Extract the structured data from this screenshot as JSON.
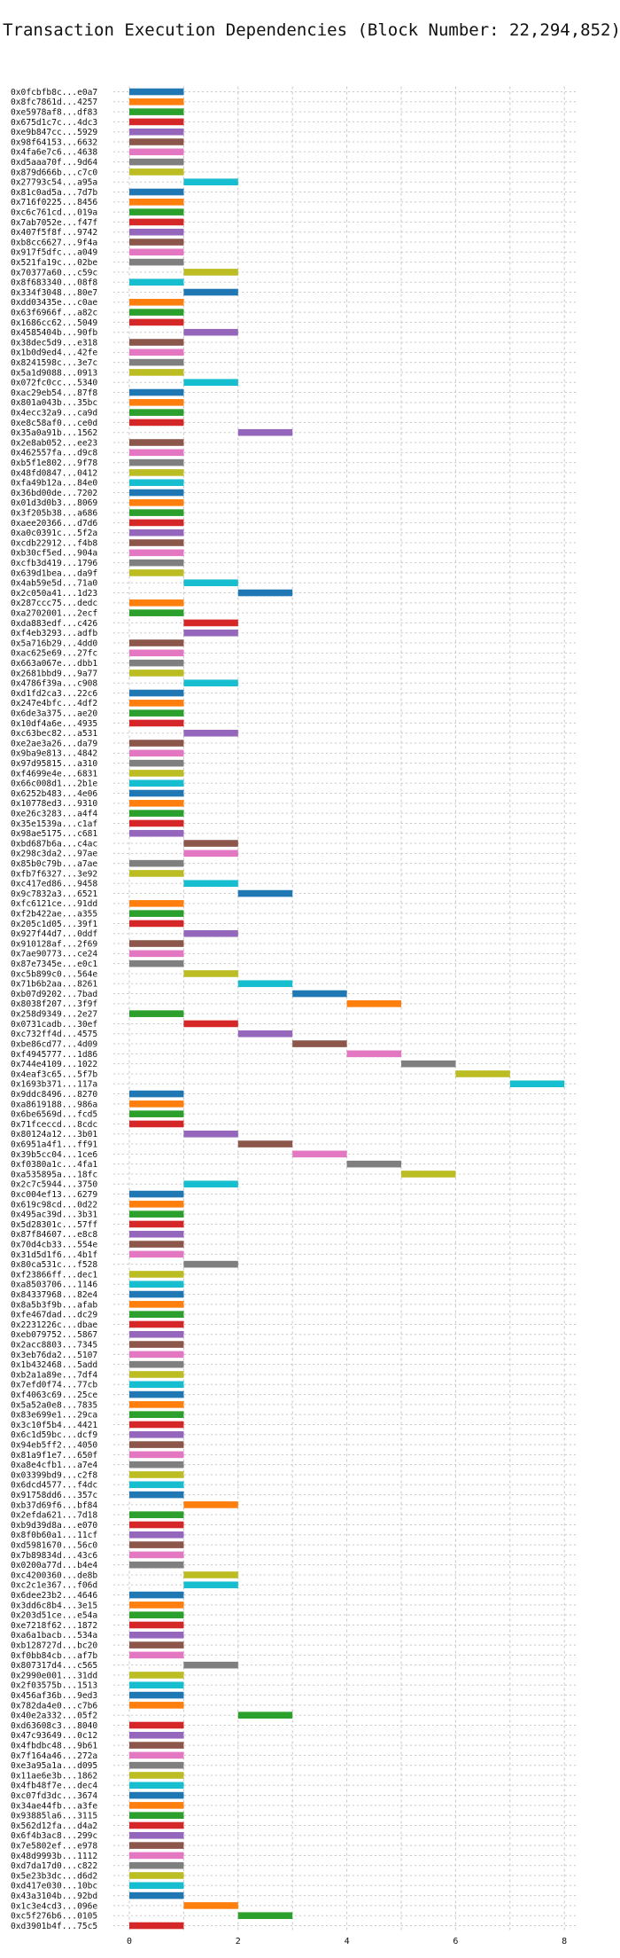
{
  "chart_data": {
    "type": "bar",
    "orientation": "horizontal-gantt",
    "title": "Transaction Execution Dependencies (Block Number: 22,294,852)",
    "xlabel": "",
    "ylabel": "",
    "xlim": [
      0,
      8.5
    ],
    "xticks": [
      0,
      2,
      4,
      6,
      8
    ],
    "grid": true,
    "legend": "none",
    "colors": [
      "#1f77b4",
      "#ff7f0e",
      "#2ca02c",
      "#d62728",
      "#9467bd",
      "#8c564b",
      "#e377c2",
      "#7f7f7f",
      "#bcbd22",
      "#17becf"
    ],
    "transactions": [
      {
        "label": "0x0fcbfb8c...e0a7",
        "start": 0
      },
      {
        "label": "0x8fc7861d...4257",
        "start": 0
      },
      {
        "label": "0xe5978af8...df83",
        "start": 0
      },
      {
        "label": "0x675d1c7c...4dc3",
        "start": 0
      },
      {
        "label": "0xe9b847cc...5929",
        "start": 0
      },
      {
        "label": "0x98f64153...6632",
        "start": 0
      },
      {
        "label": "0x4fa6e7c6...4638",
        "start": 0
      },
      {
        "label": "0xd5aaa70f...9d64",
        "start": 0
      },
      {
        "label": "0x879d666b...c7c0",
        "start": 0
      },
      {
        "label": "0x27793c54...a95a",
        "start": 1
      },
      {
        "label": "0x81c0ad5a...7d7b",
        "start": 0
      },
      {
        "label": "0x716f0225...8456",
        "start": 0
      },
      {
        "label": "0xc6c761cd...019a",
        "start": 0
      },
      {
        "label": "0x7ab7052e...f47f",
        "start": 0
      },
      {
        "label": "0x407f5f8f...9742",
        "start": 0
      },
      {
        "label": "0xb8cc6627...9f4a",
        "start": 0
      },
      {
        "label": "0x917f5dfc...a049",
        "start": 0
      },
      {
        "label": "0x521fa19c...02be",
        "start": 0
      },
      {
        "label": "0x70377a60...c59c",
        "start": 1
      },
      {
        "label": "0x8f683340...08f8",
        "start": 0
      },
      {
        "label": "0x334f3048...80e7",
        "start": 1
      },
      {
        "label": "0xdd03435e...c0ae",
        "start": 0
      },
      {
        "label": "0x63f6966f...a82c",
        "start": 0
      },
      {
        "label": "0x1686cc62...5049",
        "start": 0
      },
      {
        "label": "0x4585404b...90fb",
        "start": 1
      },
      {
        "label": "0x38dec5d9...e318",
        "start": 0
      },
      {
        "label": "0x1b0d9ed4...42fe",
        "start": 0
      },
      {
        "label": "0x8241598c...3e7c",
        "start": 0
      },
      {
        "label": "0x5a1d9088...0913",
        "start": 0
      },
      {
        "label": "0x072fc0cc...5340",
        "start": 1
      },
      {
        "label": "0xac29eb54...87f8",
        "start": 0
      },
      {
        "label": "0x801a043b...35bc",
        "start": 0
      },
      {
        "label": "0x4ecc32a9...ca9d",
        "start": 0
      },
      {
        "label": "0xe8c58af0...ce0d",
        "start": 0
      },
      {
        "label": "0x35a0a91b...1562",
        "start": 2
      },
      {
        "label": "0x2e8ab052...ee23",
        "start": 0
      },
      {
        "label": "0x462557fa...d9c8",
        "start": 0
      },
      {
        "label": "0xb5f1e802...9f78",
        "start": 0
      },
      {
        "label": "0x48fd0847...0412",
        "start": 0
      },
      {
        "label": "0xfa49b12a...84e0",
        "start": 0
      },
      {
        "label": "0x36bd00de...7202",
        "start": 0
      },
      {
        "label": "0x01d3d0b3...8069",
        "start": 0
      },
      {
        "label": "0x3f205b38...a686",
        "start": 0
      },
      {
        "label": "0xaee20366...d7d6",
        "start": 0
      },
      {
        "label": "0xa0c0391c...5f2a",
        "start": 0
      },
      {
        "label": "0xcdb22912...f4b8",
        "start": 0
      },
      {
        "label": "0xb30cf5ed...904a",
        "start": 0
      },
      {
        "label": "0xcfb3d419...1796",
        "start": 0
      },
      {
        "label": "0x639d1bea...da9f",
        "start": 0
      },
      {
        "label": "0x4ab59e5d...71a0",
        "start": 1
      },
      {
        "label": "0x2c050a41...1d23",
        "start": 2
      },
      {
        "label": "0x287ccc75...dedc",
        "start": 0
      },
      {
        "label": "0xa2702001...2ecf",
        "start": 0
      },
      {
        "label": "0xda883edf...c426",
        "start": 1
      },
      {
        "label": "0xf4eb3293...adfb",
        "start": 1
      },
      {
        "label": "0x5a716b29...4dd0",
        "start": 0
      },
      {
        "label": "0xac625e69...27fc",
        "start": 0
      },
      {
        "label": "0x663a067e...dbb1",
        "start": 0
      },
      {
        "label": "0x2681bbd9...9a77",
        "start": 0
      },
      {
        "label": "0x4786f39a...c908",
        "start": 1
      },
      {
        "label": "0xd1fd2ca3...22c6",
        "start": 0
      },
      {
        "label": "0x247e4bfc...4df2",
        "start": 0
      },
      {
        "label": "0x6de3a375...ae20",
        "start": 0
      },
      {
        "label": "0x10df4a6e...4935",
        "start": 0
      },
      {
        "label": "0xc63bec82...a531",
        "start": 1
      },
      {
        "label": "0xe2ae3a26...da79",
        "start": 0
      },
      {
        "label": "0x9ba9e813...4842",
        "start": 0
      },
      {
        "label": "0x97d95815...a310",
        "start": 0
      },
      {
        "label": "0xf4699e4e...6831",
        "start": 0
      },
      {
        "label": "0x66c008d1...2b1e",
        "start": 0
      },
      {
        "label": "0x6252b483...4e06",
        "start": 0
      },
      {
        "label": "0x10778ed3...9310",
        "start": 0
      },
      {
        "label": "0xe26c3283...a4f4",
        "start": 0
      },
      {
        "label": "0x35e1539a...c1af",
        "start": 0
      },
      {
        "label": "0x98ae5175...c681",
        "start": 0
      },
      {
        "label": "0xbd687b6a...c4ac",
        "start": 1
      },
      {
        "label": "0x298c3da2...97ae",
        "start": 1
      },
      {
        "label": "0x85b0c79b...a7ae",
        "start": 0
      },
      {
        "label": "0xfb7f6327...3e92",
        "start": 0
      },
      {
        "label": "0xc417ed86...9458",
        "start": 1
      },
      {
        "label": "0x9c7832a3...6521",
        "start": 2
      },
      {
        "label": "0xfc6121ce...91dd",
        "start": 0
      },
      {
        "label": "0xf2b422ae...a355",
        "start": 0
      },
      {
        "label": "0x205c1d05...39f1",
        "start": 0
      },
      {
        "label": "0x927f44d7...0ddf",
        "start": 1
      },
      {
        "label": "0x910128af...2f69",
        "start": 0
      },
      {
        "label": "0x7ae90773...ce24",
        "start": 0
      },
      {
        "label": "0x87e7345e...e0c1",
        "start": 0
      },
      {
        "label": "0xc5b899c0...564e",
        "start": 1
      },
      {
        "label": "0x71b6b2aa...8261",
        "start": 2
      },
      {
        "label": "0xb07d9202...7bad",
        "start": 3
      },
      {
        "label": "0x8038f207...3f9f",
        "start": 4
      },
      {
        "label": "0x258d9349...2e27",
        "start": 0
      },
      {
        "label": "0x0731cadb...30ef",
        "start": 1
      },
      {
        "label": "0xc732ff4d...4575",
        "start": 2
      },
      {
        "label": "0xbe86cd77...4d09",
        "start": 3
      },
      {
        "label": "0xf4945777...1d86",
        "start": 4
      },
      {
        "label": "0x744e4109...1022",
        "start": 5
      },
      {
        "label": "0x4eaf3c65...5f7b",
        "start": 6
      },
      {
        "label": "0x1693b371...117a",
        "start": 7
      },
      {
        "label": "0x9ddc8496...8270",
        "start": 0
      },
      {
        "label": "0xa8619188...986a",
        "start": 0
      },
      {
        "label": "0x6be6569d...fcd5",
        "start": 0
      },
      {
        "label": "0x71fceccd...8cdc",
        "start": 0
      },
      {
        "label": "0x80124a12...3b01",
        "start": 1
      },
      {
        "label": "0x6951a4f1...ff91",
        "start": 2
      },
      {
        "label": "0x39b5cc04...1ce6",
        "start": 3
      },
      {
        "label": "0xf0380a1c...4fa1",
        "start": 4
      },
      {
        "label": "0xa535895a...18fc",
        "start": 5
      },
      {
        "label": "0x2c7c5944...3750",
        "start": 1
      },
      {
        "label": "0xc004ef13...6279",
        "start": 0
      },
      {
        "label": "0x619c98cd...0d22",
        "start": 0
      },
      {
        "label": "0x495ac39d...3b31",
        "start": 0
      },
      {
        "label": "0x5d28301c...57ff",
        "start": 0
      },
      {
        "label": "0x87f84607...e8c8",
        "start": 0
      },
      {
        "label": "0x70d4cb33...554e",
        "start": 0
      },
      {
        "label": "0x31d5d1f6...4b1f",
        "start": 0
      },
      {
        "label": "0x80ca531c...f528",
        "start": 1
      },
      {
        "label": "0xf23866ff...dec1",
        "start": 0
      },
      {
        "label": "0xa8503706...1146",
        "start": 0
      },
      {
        "label": "0x84337968...82e4",
        "start": 0
      },
      {
        "label": "0x8a5b3f9b...afab",
        "start": 0
      },
      {
        "label": "0xfe467dad...dc29",
        "start": 0
      },
      {
        "label": "0x2231226c...dbae",
        "start": 0
      },
      {
        "label": "0xeb079752...5867",
        "start": 0
      },
      {
        "label": "0x2acc8803...7345",
        "start": 0
      },
      {
        "label": "0x3eb76da2...5107",
        "start": 0
      },
      {
        "label": "0x1b432468...5add",
        "start": 0
      },
      {
        "label": "0xb2a1a89e...7df4",
        "start": 0
      },
      {
        "label": "0x7efd0f74...77cb",
        "start": 0
      },
      {
        "label": "0xf4063c69...25ce",
        "start": 0
      },
      {
        "label": "0x5a52a0e8...7835",
        "start": 0
      },
      {
        "label": "0x83e699e1...29ca",
        "start": 0
      },
      {
        "label": "0x3c10f5b4...4421",
        "start": 0
      },
      {
        "label": "0x6c1d59bc...dcf9",
        "start": 0
      },
      {
        "label": "0x94eb5ff2...4050",
        "start": 0
      },
      {
        "label": "0x81a9f1e7...650f",
        "start": 0
      },
      {
        "label": "0xa8e4cfb1...a7e4",
        "start": 0
      },
      {
        "label": "0x03399bd9...c2f8",
        "start": 0
      },
      {
        "label": "0x6dcd4577...f4dc",
        "start": 0
      },
      {
        "label": "0x91758dd6...357c",
        "start": 0
      },
      {
        "label": "0xb37d69f6...bf84",
        "start": 1
      },
      {
        "label": "0x2efda621...7d18",
        "start": 0
      },
      {
        "label": "0xb9d39d8a...e070",
        "start": 0
      },
      {
        "label": "0x8f0b60a1...11cf",
        "start": 0
      },
      {
        "label": "0xd5981670...56c0",
        "start": 0
      },
      {
        "label": "0x7b89834d...43c6",
        "start": 0
      },
      {
        "label": "0x0200a77d...b4e4",
        "start": 0
      },
      {
        "label": "0xc4200360...de8b",
        "start": 1
      },
      {
        "label": "0xc2c1e367...f06d",
        "start": 1
      },
      {
        "label": "0x6dee23b2...4646",
        "start": 0
      },
      {
        "label": "0x3dd6c8b4...3e15",
        "start": 0
      },
      {
        "label": "0x203d51ce...e54a",
        "start": 0
      },
      {
        "label": "0xe7218f62...1872",
        "start": 0
      },
      {
        "label": "0xa6a1bacb...534a",
        "start": 0
      },
      {
        "label": "0xb128727d...bc20",
        "start": 0
      },
      {
        "label": "0xf0bb84cb...af7b",
        "start": 0
      },
      {
        "label": "0x807317d4...c565",
        "start": 1
      },
      {
        "label": "0x2990e001...31dd",
        "start": 0
      },
      {
        "label": "0x2f03575b...1513",
        "start": 0
      },
      {
        "label": "0x456af36b...9ed3",
        "start": 0
      },
      {
        "label": "0x782da4e0...c7b6",
        "start": 0
      },
      {
        "label": "0x40e2a332...05f2",
        "start": 2
      },
      {
        "label": "0xd63608c3...8040",
        "start": 0
      },
      {
        "label": "0x47c93649...0c12",
        "start": 0
      },
      {
        "label": "0x4fbdbc48...9b61",
        "start": 0
      },
      {
        "label": "0x7f164a46...272a",
        "start": 0
      },
      {
        "label": "0xe3a95a1a...d095",
        "start": 0
      },
      {
        "label": "0x11ae6e3b...1862",
        "start": 0
      },
      {
        "label": "0x4fb48f7e...dec4",
        "start": 0
      },
      {
        "label": "0xc07fd3dc...3674",
        "start": 0
      },
      {
        "label": "0x34ae44fb...a3fe",
        "start": 0
      },
      {
        "label": "0x93885la6...3115",
        "start": 0
      },
      {
        "label": "0x562d12fa...d4a2",
        "start": 0
      },
      {
        "label": "0x6f4b3ac8...299c",
        "start": 0
      },
      {
        "label": "0x7e5802ef...e978",
        "start": 0
      },
      {
        "label": "0x48d9993b...1112",
        "start": 0
      },
      {
        "label": "0xd7da17d0...c822",
        "start": 0
      },
      {
        "label": "0x5e23b3dc...d6d2",
        "start": 0
      },
      {
        "label": "0xd417e030...10bc",
        "start": 0
      },
      {
        "label": "0x43a3104b...92bd",
        "start": 0
      },
      {
        "label": "0x1c3e4cd3...096e",
        "start": 1
      },
      {
        "label": "0xc5f276b6...0105",
        "start": 2
      },
      {
        "label": "0xd3901b4f...75c5",
        "start": 0
      }
    ]
  }
}
